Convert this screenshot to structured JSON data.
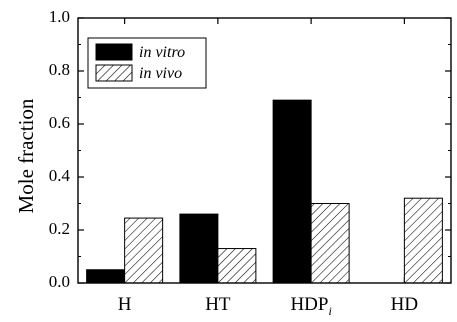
{
  "chart_data": {
    "type": "bar",
    "categories": [
      "H",
      "HT",
      "HDP",
      "HD"
    ],
    "category_subscripts": [
      "",
      "",
      "i",
      ""
    ],
    "series": [
      {
        "name": "in vitro",
        "values": [
          0.05,
          0.26,
          0.69,
          0.0
        ],
        "fill": "#000000"
      },
      {
        "name": "in vivo",
        "values": [
          0.245,
          0.13,
          0.3,
          0.32
        ],
        "fill": "hatch"
      }
    ],
    "ylabel": "Mole fraction",
    "xlabel": "",
    "ylim": [
      0.0,
      1.0
    ],
    "yticks": [
      0.0,
      0.2,
      0.4,
      0.6,
      0.8,
      1.0
    ],
    "ytick_labels": [
      "0.0",
      "0.2",
      "0.4",
      "0.6",
      "0.8",
      "1.0"
    ],
    "grid": false,
    "legend_position": "top-left"
  }
}
